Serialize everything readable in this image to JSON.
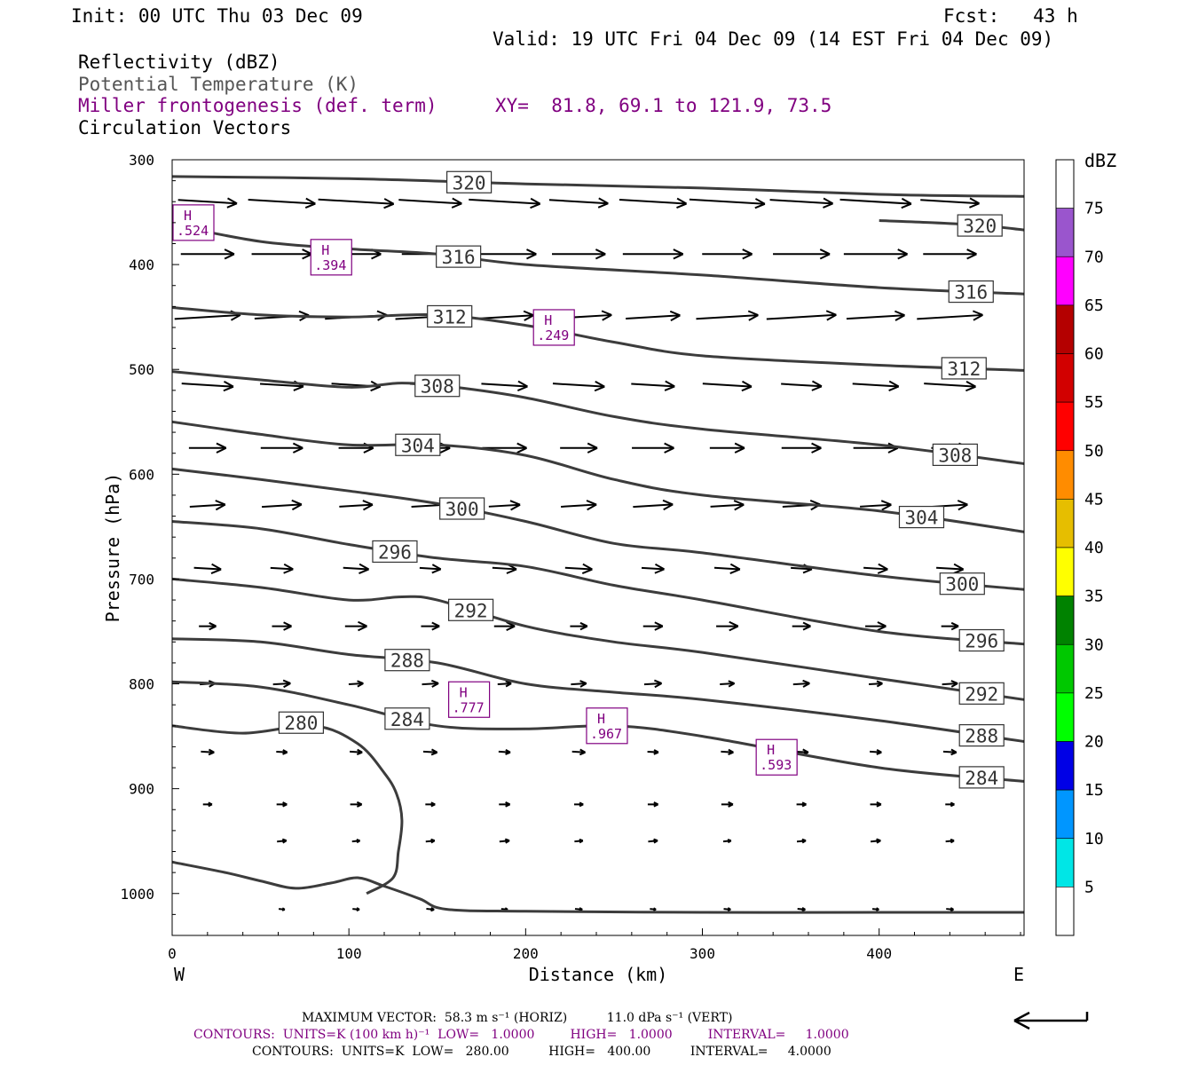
{
  "header": {
    "init": "Init: 00 UTC Thu 03 Dec 09",
    "fcst": "Fcst:   43 h",
    "valid": "Valid: 19 UTC Fri 04 Dec 09 (14 EST Fri 04 Dec 09)",
    "field1": "Reflectivity (dBZ)",
    "field2": "Potential Temperature (K)",
    "field3": "Miller frontogenesis (def. term)",
    "xy": "XY=  81.8, 69.1 to 121.9, 73.5",
    "field4": "Circulation Vectors"
  },
  "footer": {
    "line1": "MAXIMUM VECTOR:  58.3 m s⁻¹ (HORIZ)          11.0 dPa s⁻¹ (VERT)",
    "line2": "CONTOURS:  UNITS=K (100 km h)⁻¹  LOW=   1.0000         HIGH=   1.0000         INTERVAL=     1.0000",
    "line3": "CONTOURS:  UNITS=K  LOW=   280.00          HIGH=   400.00          INTERVAL=     4.0000"
  },
  "colors": {
    "theta": "#3c3c3c",
    "frontogenesis": "#800080",
    "vectors": "#000000"
  },
  "chart_data": {
    "type": "cross-section",
    "xlabel": "Distance (km)",
    "ylabel": "Pressure (hPa)",
    "xlim": [
      0,
      482
    ],
    "ylim": [
      1040,
      300
    ],
    "x_ticks": [
      0,
      100,
      200,
      300,
      400
    ],
    "y_ticks": [
      300,
      400,
      500,
      600,
      700,
      800,
      900,
      1000
    ],
    "left_end_label": "W",
    "right_end_label": "E",
    "colorbar": {
      "label": "dBZ",
      "levels": [
        "5",
        "10",
        "15",
        "20",
        "25",
        "30",
        "35",
        "40",
        "45",
        "50",
        "55",
        "60",
        "65",
        "70",
        "75"
      ],
      "colors": [
        "#ffffff",
        "#00e6e6",
        "#0096ff",
        "#0000e6",
        "#00ff00",
        "#00c800",
        "#008200",
        "#ffff00",
        "#e6be00",
        "#ff8c00",
        "#ff0000",
        "#d20000",
        "#b40000",
        "#ff00ff",
        "#9a55cd",
        "#ffffff"
      ]
    },
    "theta_contours": [
      {
        "value": "320",
        "points": [
          [
            0,
            316
          ],
          [
            100,
            318
          ],
          [
            200,
            323
          ],
          [
            300,
            327
          ],
          [
            400,
            333
          ],
          [
            482,
            335
          ]
        ]
      },
      {
        "value": "320",
        "points": [
          [
            400,
            358
          ],
          [
            430,
            360
          ],
          [
            460,
            363
          ],
          [
            482,
            367
          ]
        ]
      },
      {
        "value": "316",
        "points": [
          [
            0,
            362
          ],
          [
            50,
            378
          ],
          [
            100,
            385
          ],
          [
            150,
            390
          ],
          [
            200,
            400
          ],
          [
            300,
            410
          ],
          [
            400,
            422
          ],
          [
            482,
            428
          ]
        ]
      },
      {
        "value": "312",
        "points": [
          [
            0,
            441
          ],
          [
            50,
            448
          ],
          [
            100,
            450
          ],
          [
            150,
            448
          ],
          [
            200,
            458
          ],
          [
            250,
            474
          ],
          [
            300,
            487
          ],
          [
            400,
            496
          ],
          [
            482,
            501
          ]
        ]
      },
      {
        "value": "308",
        "points": [
          [
            0,
            502
          ],
          [
            50,
            510
          ],
          [
            100,
            517
          ],
          [
            130,
            513
          ],
          [
            160,
            517
          ],
          [
            200,
            527
          ],
          [
            250,
            545
          ],
          [
            300,
            557
          ],
          [
            400,
            572
          ],
          [
            482,
            590
          ]
        ]
      },
      {
        "value": "304",
        "points": [
          [
            0,
            550
          ],
          [
            50,
            562
          ],
          [
            100,
            572
          ],
          [
            150,
            572
          ],
          [
            200,
            582
          ],
          [
            250,
            605
          ],
          [
            300,
            620
          ],
          [
            400,
            635
          ],
          [
            482,
            655
          ]
        ]
      },
      {
        "value": "300",
        "points": [
          [
            0,
            595
          ],
          [
            50,
            605
          ],
          [
            100,
            616
          ],
          [
            150,
            628
          ],
          [
            200,
            645
          ],
          [
            250,
            666
          ],
          [
            300,
            675
          ],
          [
            400,
            697
          ],
          [
            482,
            710
          ]
        ]
      },
      {
        "value": "296",
        "points": [
          [
            0,
            645
          ],
          [
            50,
            652
          ],
          [
            100,
            667
          ],
          [
            150,
            680
          ],
          [
            200,
            688
          ],
          [
            250,
            706
          ],
          [
            300,
            720
          ],
          [
            400,
            750
          ],
          [
            482,
            762
          ]
        ]
      },
      {
        "value": "292",
        "points": [
          [
            0,
            700
          ],
          [
            50,
            708
          ],
          [
            100,
            720
          ],
          [
            130,
            717
          ],
          [
            150,
            720
          ],
          [
            200,
            745
          ],
          [
            250,
            760
          ],
          [
            300,
            770
          ],
          [
            400,
            795
          ],
          [
            482,
            815
          ]
        ]
      },
      {
        "value": "288",
        "points": [
          [
            0,
            757
          ],
          [
            50,
            760
          ],
          [
            100,
            772
          ],
          [
            150,
            780
          ],
          [
            200,
            800
          ],
          [
            250,
            808
          ],
          [
            300,
            815
          ],
          [
            400,
            835
          ],
          [
            482,
            855
          ]
        ]
      },
      {
        "value": "284",
        "points": [
          [
            0,
            798
          ],
          [
            50,
            803
          ],
          [
            100,
            820
          ],
          [
            150,
            840
          ],
          [
            200,
            843
          ],
          [
            250,
            840
          ],
          [
            300,
            850
          ],
          [
            400,
            880
          ],
          [
            482,
            893
          ]
        ]
      },
      {
        "value": "280",
        "points": [
          [
            0,
            840
          ],
          [
            40,
            847
          ],
          [
            80,
            840
          ],
          [
            105,
            857
          ],
          [
            120,
            885
          ],
          [
            127,
            905
          ],
          [
            130,
            930
          ],
          [
            128,
            960
          ],
          [
            125,
            985
          ],
          [
            110,
            1000
          ]
        ]
      },
      {
        "value": "",
        "points": [
          [
            0,
            970
          ],
          [
            30,
            980
          ],
          [
            50,
            988
          ],
          [
            70,
            995
          ],
          [
            90,
            990
          ],
          [
            105,
            985
          ],
          [
            120,
            993
          ],
          [
            140,
            1005
          ],
          [
            155,
            1015
          ],
          [
            200,
            1017
          ],
          [
            300,
            1018
          ],
          [
            400,
            1018
          ],
          [
            482,
            1018
          ]
        ]
      }
    ],
    "frontogenesis_maxima": [
      {
        "label": "H",
        "value": ".524",
        "x": 3,
        "p": 360
      },
      {
        "label": "H",
        "value": ".394",
        "x": 90,
        "p": 393
      },
      {
        "label": "H",
        "value": ".249",
        "x": 216,
        "p": 460
      },
      {
        "label": "H",
        "value": ".777",
        "x": 168,
        "p": 815
      },
      {
        "label": "H",
        "value": ".967",
        "x": 246,
        "p": 840
      },
      {
        "label": "H",
        "value": ".593",
        "x": 342,
        "p": 870
      }
    ]
  }
}
